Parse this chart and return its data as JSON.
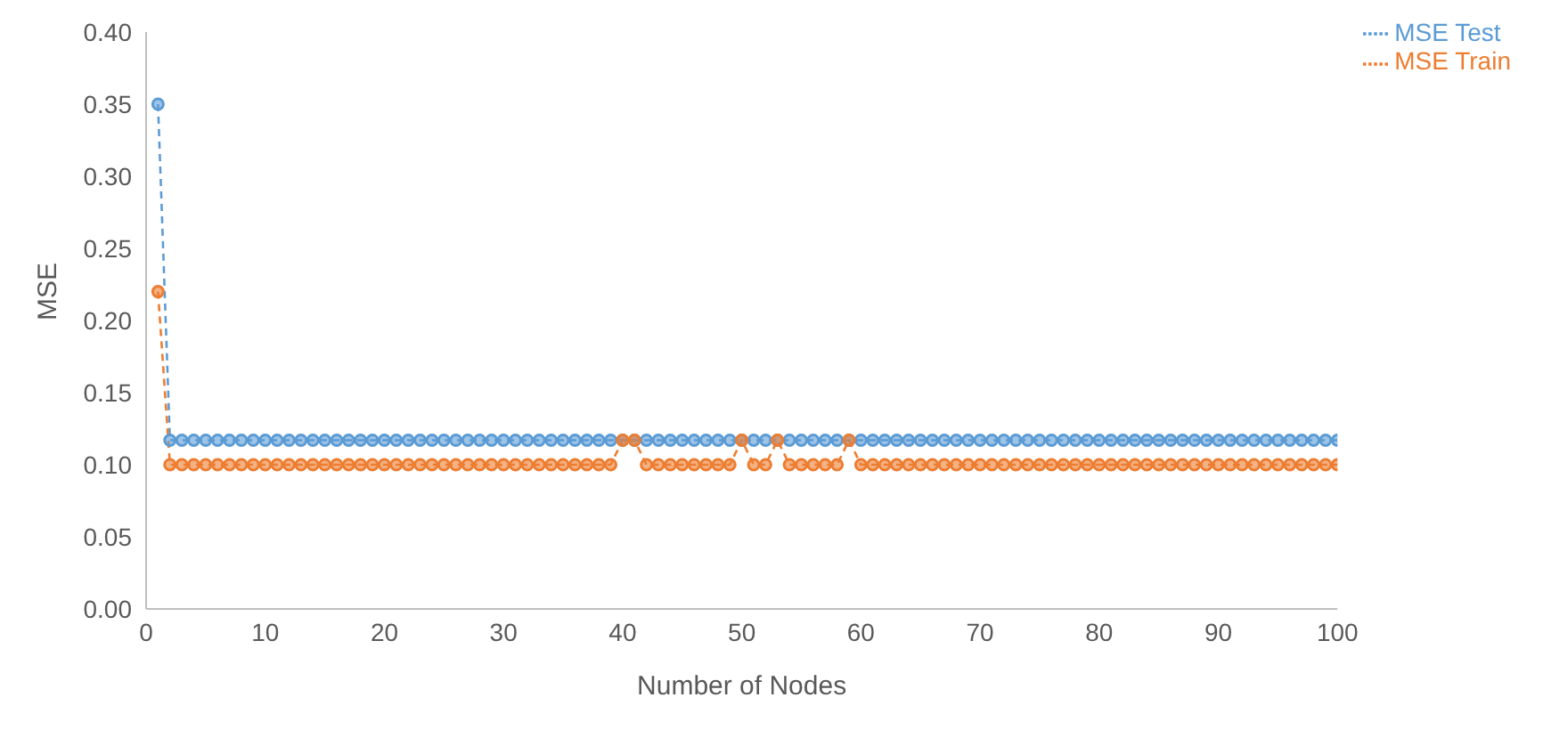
{
  "chart_data": {
    "type": "line",
    "xlabel": "Number of Nodes",
    "ylabel": "MSE",
    "x": [
      1,
      2,
      3,
      4,
      5,
      6,
      7,
      8,
      9,
      10,
      11,
      12,
      13,
      14,
      15,
      16,
      17,
      18,
      19,
      20,
      21,
      22,
      23,
      24,
      25,
      26,
      27,
      28,
      29,
      30,
      31,
      32,
      33,
      34,
      35,
      36,
      37,
      38,
      39,
      40,
      41,
      42,
      43,
      44,
      45,
      46,
      47,
      48,
      49,
      50,
      51,
      52,
      53,
      54,
      55,
      56,
      57,
      58,
      59,
      60,
      61,
      62,
      63,
      64,
      65,
      66,
      67,
      68,
      69,
      70,
      71,
      72,
      73,
      74,
      75,
      76,
      77,
      78,
      79,
      80,
      81,
      82,
      83,
      84,
      85,
      86,
      87,
      88,
      89,
      90,
      91,
      92,
      93,
      94,
      95,
      96,
      97,
      98,
      99,
      100
    ],
    "series": [
      {
        "name": "MSE Test",
        "color": "#5b9bd5",
        "values": [
          0.35,
          0.117,
          0.117,
          0.117,
          0.117,
          0.117,
          0.117,
          0.117,
          0.117,
          0.117,
          0.117,
          0.117,
          0.117,
          0.117,
          0.117,
          0.117,
          0.117,
          0.117,
          0.117,
          0.117,
          0.117,
          0.117,
          0.117,
          0.117,
          0.117,
          0.117,
          0.117,
          0.117,
          0.117,
          0.117,
          0.117,
          0.117,
          0.117,
          0.117,
          0.117,
          0.117,
          0.117,
          0.117,
          0.117,
          0.117,
          0.117,
          0.117,
          0.117,
          0.117,
          0.117,
          0.117,
          0.117,
          0.117,
          0.117,
          0.117,
          0.117,
          0.117,
          0.117,
          0.117,
          0.117,
          0.117,
          0.117,
          0.117,
          0.117,
          0.117,
          0.117,
          0.117,
          0.117,
          0.117,
          0.117,
          0.117,
          0.117,
          0.117,
          0.117,
          0.117,
          0.117,
          0.117,
          0.117,
          0.117,
          0.117,
          0.117,
          0.117,
          0.117,
          0.117,
          0.117,
          0.117,
          0.117,
          0.117,
          0.117,
          0.117,
          0.117,
          0.117,
          0.117,
          0.117,
          0.117,
          0.117,
          0.117,
          0.117,
          0.117,
          0.117,
          0.117,
          0.117,
          0.117,
          0.117,
          0.117
        ]
      },
      {
        "name": "MSE Train",
        "color": "#ed7d31",
        "values": [
          0.22,
          0.1,
          0.1,
          0.1,
          0.1,
          0.1,
          0.1,
          0.1,
          0.1,
          0.1,
          0.1,
          0.1,
          0.1,
          0.1,
          0.1,
          0.1,
          0.1,
          0.1,
          0.1,
          0.1,
          0.1,
          0.1,
          0.1,
          0.1,
          0.1,
          0.1,
          0.1,
          0.1,
          0.1,
          0.1,
          0.1,
          0.1,
          0.1,
          0.1,
          0.1,
          0.1,
          0.1,
          0.1,
          0.1,
          0.117,
          0.117,
          0.1,
          0.1,
          0.1,
          0.1,
          0.1,
          0.1,
          0.1,
          0.1,
          0.117,
          0.1,
          0.1,
          0.117,
          0.1,
          0.1,
          0.1,
          0.1,
          0.1,
          0.117,
          0.1,
          0.1,
          0.1,
          0.1,
          0.1,
          0.1,
          0.1,
          0.1,
          0.1,
          0.1,
          0.1,
          0.1,
          0.1,
          0.1,
          0.1,
          0.1,
          0.1,
          0.1,
          0.1,
          0.1,
          0.1,
          0.1,
          0.1,
          0.1,
          0.1,
          0.1,
          0.1,
          0.1,
          0.1,
          0.1,
          0.1,
          0.1,
          0.1,
          0.1,
          0.1,
          0.1,
          0.1,
          0.1,
          0.1,
          0.1,
          0.1
        ]
      }
    ],
    "xlim": [
      0,
      100
    ],
    "xticks": [
      0,
      10,
      20,
      30,
      40,
      50,
      60,
      70,
      80,
      90,
      100
    ],
    "ylim": [
      0,
      0.4
    ],
    "yticks": [
      {
        "value": 0,
        "label": "0.00"
      },
      {
        "value": 0.05,
        "label": "0.05"
      },
      {
        "value": 0.1,
        "label": "0.10"
      },
      {
        "value": 0.15,
        "label": "0.15"
      },
      {
        "value": 0.2,
        "label": "0.20"
      },
      {
        "value": 0.25,
        "label": "0.25"
      },
      {
        "value": 0.3,
        "label": "0.30"
      },
      {
        "value": 0.35,
        "label": "0.35"
      },
      {
        "value": 0.4,
        "label": "0.40"
      }
    ],
    "legend": "top right",
    "marker": "circle",
    "line_style": "dashed",
    "grid": false
  }
}
